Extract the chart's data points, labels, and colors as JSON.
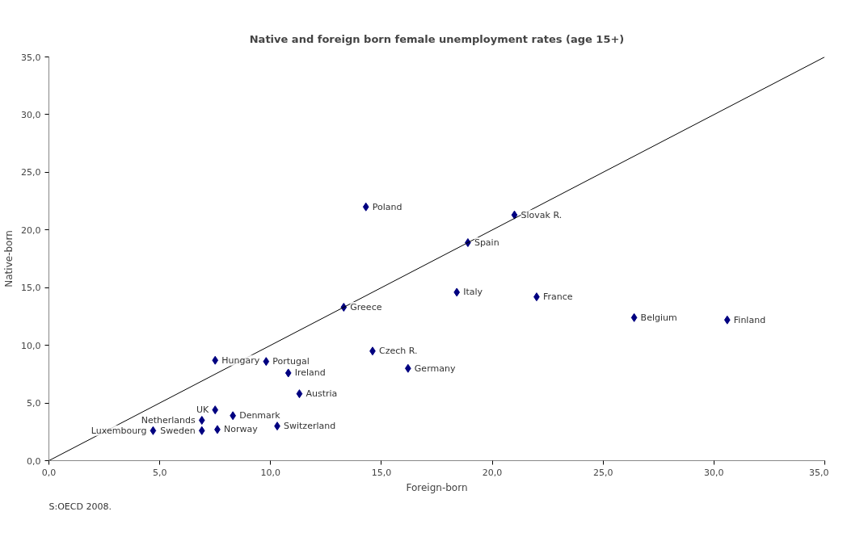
{
  "chart_data": {
    "type": "scatter",
    "title": "Native and foreign born female unemployment rates (age 15+)",
    "xlabel": "Foreign-born",
    "ylabel": "Native-born",
    "xlim": [
      0,
      35
    ],
    "ylim": [
      0,
      35
    ],
    "xticks": [
      {
        "value": 0,
        "label": "0,0"
      },
      {
        "value": 5,
        "label": "5,0"
      },
      {
        "value": 10,
        "label": "10,0"
      },
      {
        "value": 15,
        "label": "15,0"
      },
      {
        "value": 20,
        "label": "20,0"
      },
      {
        "value": 25,
        "label": "25,0"
      },
      {
        "value": 30,
        "label": "30,0"
      },
      {
        "value": 35,
        "label": "35,0"
      }
    ],
    "yticks": [
      {
        "value": 0,
        "label": "0,0"
      },
      {
        "value": 5,
        "label": "5,0"
      },
      {
        "value": 10,
        "label": "10,0"
      },
      {
        "value": 15,
        "label": "15,0"
      },
      {
        "value": 20,
        "label": "20,0"
      },
      {
        "value": 25,
        "label": "25,0"
      },
      {
        "value": 30,
        "label": "30,0"
      },
      {
        "value": 35,
        "label": "35,0"
      }
    ],
    "grid": false,
    "series": [
      {
        "color": "#000080",
        "marker": "diamond",
        "x": [
          4.7,
          6.9,
          6.9,
          7.5,
          7.6,
          8.3,
          7.5,
          9.8,
          10.8,
          11.3,
          10.3,
          14.6,
          16.2,
          13.3,
          14.3,
          18.4,
          18.9,
          21.0,
          22.0,
          26.4,
          30.6
        ],
        "values": [
          2.6,
          3.5,
          2.6,
          4.4,
          2.7,
          3.9,
          8.7,
          8.6,
          7.6,
          5.8,
          3.0,
          9.5,
          8.0,
          13.3,
          22.0,
          14.6,
          18.9,
          21.3,
          14.2,
          12.4,
          12.2
        ]
      },
      {
        "type": "line",
        "color": "#000000",
        "marker": "none",
        "line_style": "solid",
        "x": [
          0,
          35
        ],
        "values": [
          0,
          35
        ]
      }
    ],
    "annotations": [
      {
        "text": "Luxembourg",
        "x": 4.7,
        "y": 2.6
      },
      {
        "text": "Netherlands",
        "x": 6.9,
        "y": 3.5
      },
      {
        "text": "Sweden",
        "x": 6.9,
        "y": 2.6
      },
      {
        "text": "UK",
        "x": 7.5,
        "y": 4.4
      },
      {
        "text": "Norway",
        "x": 7.6,
        "y": 2.7
      },
      {
        "text": "Denmark",
        "x": 8.3,
        "y": 3.9
      },
      {
        "text": "Hungary",
        "x": 7.5,
        "y": 8.7
      },
      {
        "text": "Portugal",
        "x": 9.8,
        "y": 8.6
      },
      {
        "text": "Ireland",
        "x": 10.8,
        "y": 7.6
      },
      {
        "text": "Austria",
        "x": 11.3,
        "y": 5.8
      },
      {
        "text": "Switzerland",
        "x": 10.3,
        "y": 3.0
      },
      {
        "text": "Czech R.",
        "x": 14.6,
        "y": 9.5
      },
      {
        "text": "Germany",
        "x": 16.2,
        "y": 8.0
      },
      {
        "text": "Greece",
        "x": 13.3,
        "y": 13.3
      },
      {
        "text": "Poland",
        "x": 14.3,
        "y": 22.0
      },
      {
        "text": "Italy",
        "x": 18.4,
        "y": 14.6
      },
      {
        "text": "Spain",
        "x": 18.9,
        "y": 18.9
      },
      {
        "text": "Slovak R.",
        "x": 21.0,
        "y": 21.3
      },
      {
        "text": "France",
        "x": 22.0,
        "y": 14.2
      },
      {
        "text": "Belgium",
        "x": 26.4,
        "y": 12.4
      },
      {
        "text": "Finland",
        "x": 30.6,
        "y": 12.2
      },
      "S:OECD 2008."
    ]
  }
}
